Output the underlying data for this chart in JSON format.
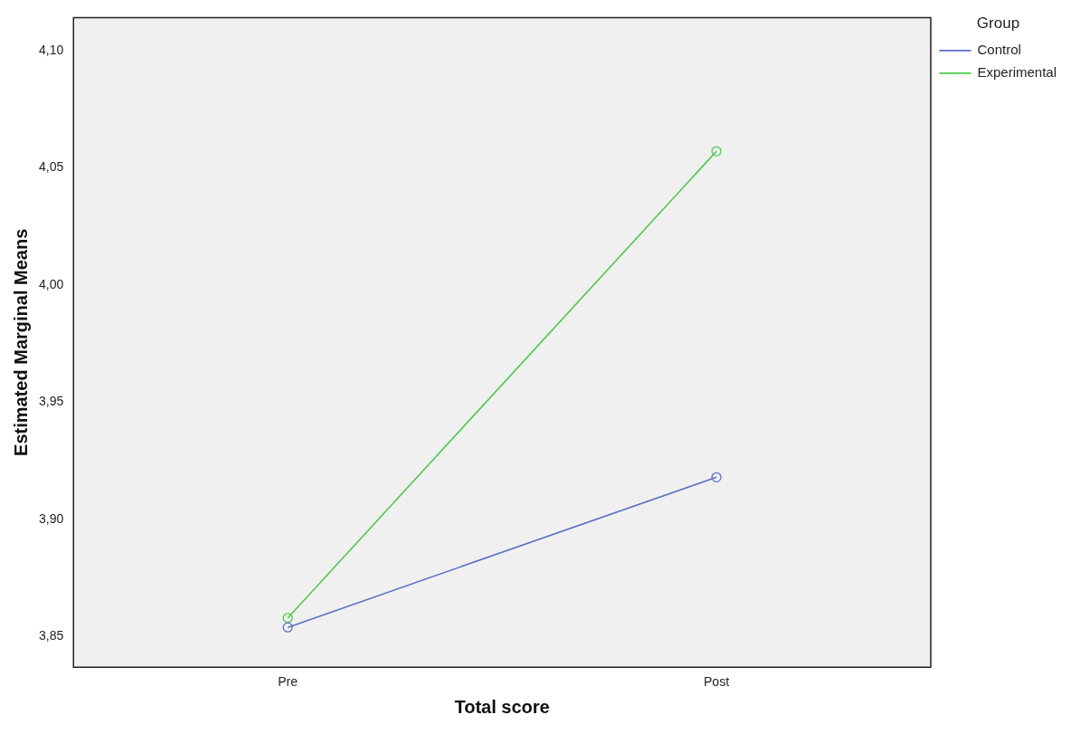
{
  "chart_data": {
    "type": "line",
    "xlabel": "Total score",
    "ylabel": "Estimated Marginal Means",
    "legend_title": "Group",
    "legend": "top right",
    "marker": "circle",
    "grid": false,
    "categories": [
      "Pre",
      "Post"
    ],
    "series": [
      {
        "name": "Control",
        "color": "#5b6ec6",
        "values": [
          3.854,
          3.918
        ]
      },
      {
        "name": "Experimental",
        "color": "#4ccb4c",
        "values": [
          3.858,
          4.057
        ]
      }
    ],
    "ylim": [
      3.837,
      4.114
    ],
    "yticks": [
      {
        "value": 3.85,
        "label": "3,85"
      },
      {
        "value": 3.9,
        "label": "3,90"
      },
      {
        "value": 3.95,
        "label": "3,95"
      },
      {
        "value": 4.0,
        "label": "4,00"
      },
      {
        "value": 4.05,
        "label": "4,05"
      },
      {
        "value": 4.1,
        "label": "4,10"
      }
    ]
  }
}
